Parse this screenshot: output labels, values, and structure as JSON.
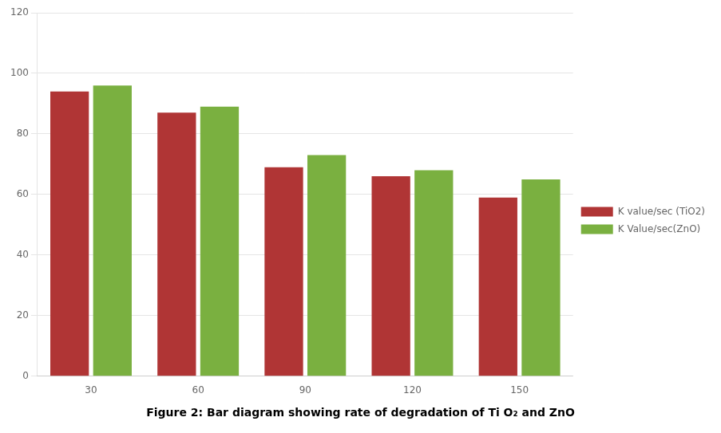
{
  "chart_data": {
    "type": "bar",
    "title": "Figure 2: Bar diagram showing rate of degradation of Ti O₂ and ZnO",
    "categories": [
      "30",
      "60",
      "90",
      "120",
      "150"
    ],
    "series": [
      {
        "name": "K value/sec (TiO2)",
        "color": "#b03535",
        "values": [
          94,
          87,
          69,
          66,
          59
        ]
      },
      {
        "name": "K Value/sec(ZnO)",
        "color": "#7ab040",
        "values": [
          96,
          89,
          73,
          68,
          65
        ]
      }
    ],
    "ylim": [
      0,
      120
    ],
    "yticks": [
      0,
      20,
      40,
      60,
      80,
      100,
      120
    ],
    "grid": true,
    "legend": "right"
  }
}
